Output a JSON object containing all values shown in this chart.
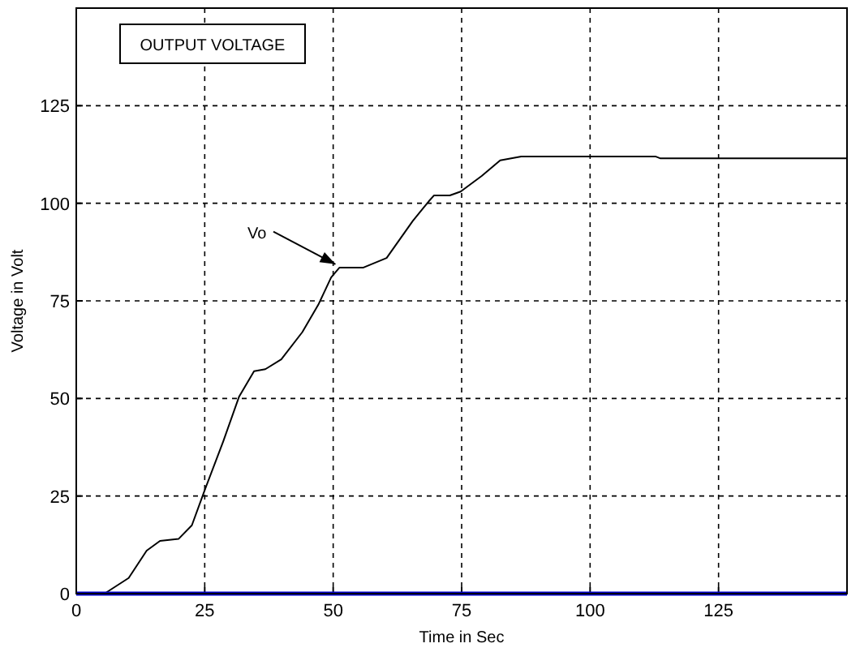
{
  "chart_data": {
    "type": "line",
    "title": "OUTPUT VOLTAGE",
    "xlabel": "Time in Sec",
    "ylabel": "Voltage in Volt",
    "xlim": [
      0,
      150
    ],
    "ylim": [
      0,
      150
    ],
    "xticks": [
      0,
      25,
      50,
      75,
      100,
      125
    ],
    "yticks": [
      0,
      25,
      50,
      75,
      100,
      125
    ],
    "grid": true,
    "annotations": [
      {
        "text": "Vo",
        "x": 51,
        "y": 84
      }
    ],
    "series": [
      {
        "color": "#000000",
        "x": [
          2,
          5.5,
          10.2,
          13.7,
          16.3,
          19.9,
          22.5,
          25,
          28.6,
          31.7,
          34.6,
          36.8,
          39.9,
          44,
          47.1,
          49.6,
          51.2,
          55.8,
          60.4,
          65.5,
          68.6,
          69.6,
          72.7,
          74.8,
          78.9,
          82.5,
          86.6,
          112.7,
          113.7,
          150
        ],
        "values": [
          0,
          0,
          4,
          11,
          13.5,
          14,
          17.5,
          26.5,
          39,
          50.5,
          57,
          57.5,
          60,
          67,
          74,
          81,
          83.5,
          83.5,
          86,
          95.5,
          100.5,
          102,
          102,
          103,
          107,
          111,
          112,
          112,
          111.5,
          111.5
        ]
      },
      {
        "color": "#0000cc",
        "x": [
          0,
          150
        ],
        "values": [
          0,
          0
        ]
      }
    ]
  }
}
